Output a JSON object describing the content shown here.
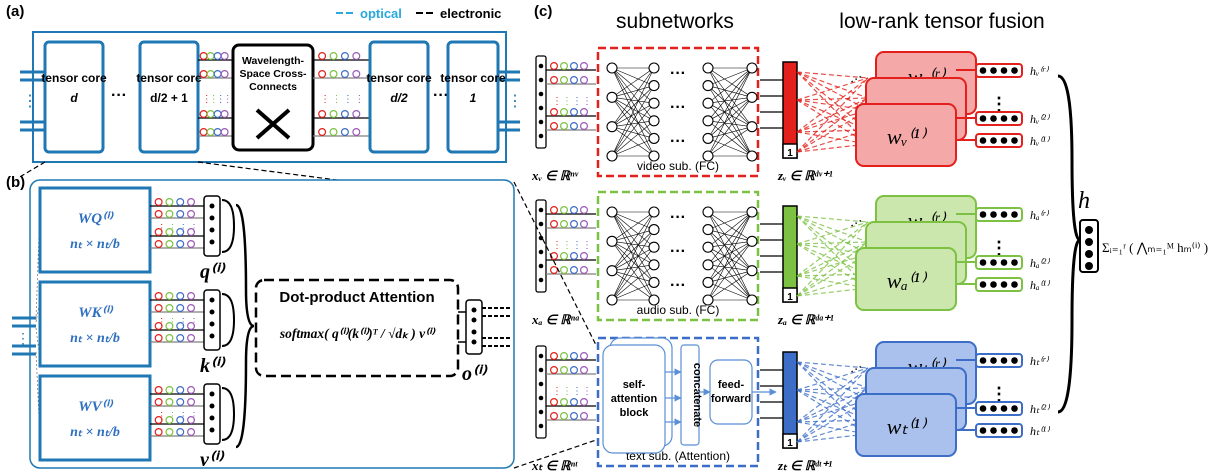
{
  "legend": {
    "optical": "optical",
    "electronic": "electronic"
  },
  "panel_a": {
    "label": "(a)",
    "cores": [
      {
        "title": "tensor core",
        "index": "d"
      },
      {
        "title": "tensor core",
        "index": "d/2 + 1"
      },
      {
        "title": "tensor core",
        "index": "d/2"
      },
      {
        "title": "tensor core",
        "index": "1"
      }
    ],
    "ellipsis": "···",
    "crossconnect": [
      "Wavelength-",
      "Space Cross-",
      "Connects"
    ]
  },
  "panel_b": {
    "label": "(b)",
    "weights": [
      {
        "name": "WQ⁽ⁱ⁾",
        "dims": "nₜ × nₜ/b",
        "out": "q⁽ⁱ⁾"
      },
      {
        "name": "WK⁽ⁱ⁾",
        "dims": "nₜ × nₜ/b",
        "out": "k⁽ⁱ⁾"
      },
      {
        "name": "WV⁽ⁱ⁾",
        "dims": "nₜ × nₜ/b",
        "out": "v⁽ⁱ⁾"
      }
    ],
    "attention_title": "Dot-product Attention",
    "attention_formula": "softmax( q⁽ⁱ⁾(k⁽ⁱ⁾)ᵀ / √dₖ ) v⁽ⁱ⁾",
    "output": "o⁽ⁱ⁾"
  },
  "panel_c": {
    "label": "(c)",
    "header_sub": "subnetworks",
    "header_fusion": "low-rank tensor fusion",
    "rows": [
      {
        "input": "xᵥ ∈ ℝⁿᵛ",
        "sub": "video sub. (FC)",
        "z": "zᵥ ∈ ℝᵈᵛ⁺¹",
        "w_r": "wᵥ⁽ʳ⁾",
        "w_1": "wᵥ⁽¹⁾",
        "h_r": "hᵥ⁽ʳ⁾",
        "h_2": "hᵥ⁽²⁾",
        "h_1": "hᵥ⁽¹⁾",
        "color": "#e3201b",
        "light": "#f4a9a8"
      },
      {
        "input": "xₐ ∈ ℝⁿᵃ",
        "sub": "audio sub. (FC)",
        "z": "zₐ ∈ ℝᵈᵃ⁺¹",
        "w_r": "wₐ⁽ʳ⁾",
        "w_1": "wₐ⁽¹⁾",
        "h_r": "hₐ⁽ʳ⁾",
        "h_2": "hₐ⁽²⁾",
        "h_1": "hₐ⁽¹⁾",
        "color": "#7cc142",
        "light": "#cbe7ad"
      },
      {
        "input": "xₜ ∈ ℝⁿᵗ",
        "sub": "text sub. (Attention)",
        "z": "zₜ ∈ ℝᵈᵗ⁺¹",
        "w_r": "wₜ⁽ʳ⁾",
        "w_1": "wₜ⁽¹⁾",
        "h_r": "hₜ⁽ʳ⁾",
        "h_2": "hₜ⁽²⁾",
        "h_1": "hₜ⁽¹⁾",
        "color": "#3d6ec7",
        "light": "#a9c1ec"
      }
    ],
    "text_blocks": {
      "self_attention": [
        "self-",
        "attention",
        "block"
      ],
      "concatenate": "concatenate",
      "feed_forward": [
        "feed-",
        "forward"
      ]
    },
    "bias_label": "1",
    "fusion_out": "h",
    "fusion_formula": "Σᵢ₌₁ʳ ( ⋀ₘ₌₁ᴹ hₘ⁽ⁱ⁾ )"
  },
  "colors": {
    "blue": "#1f78b4",
    "cyan": "#29a8df",
    "black": "#000000"
  }
}
